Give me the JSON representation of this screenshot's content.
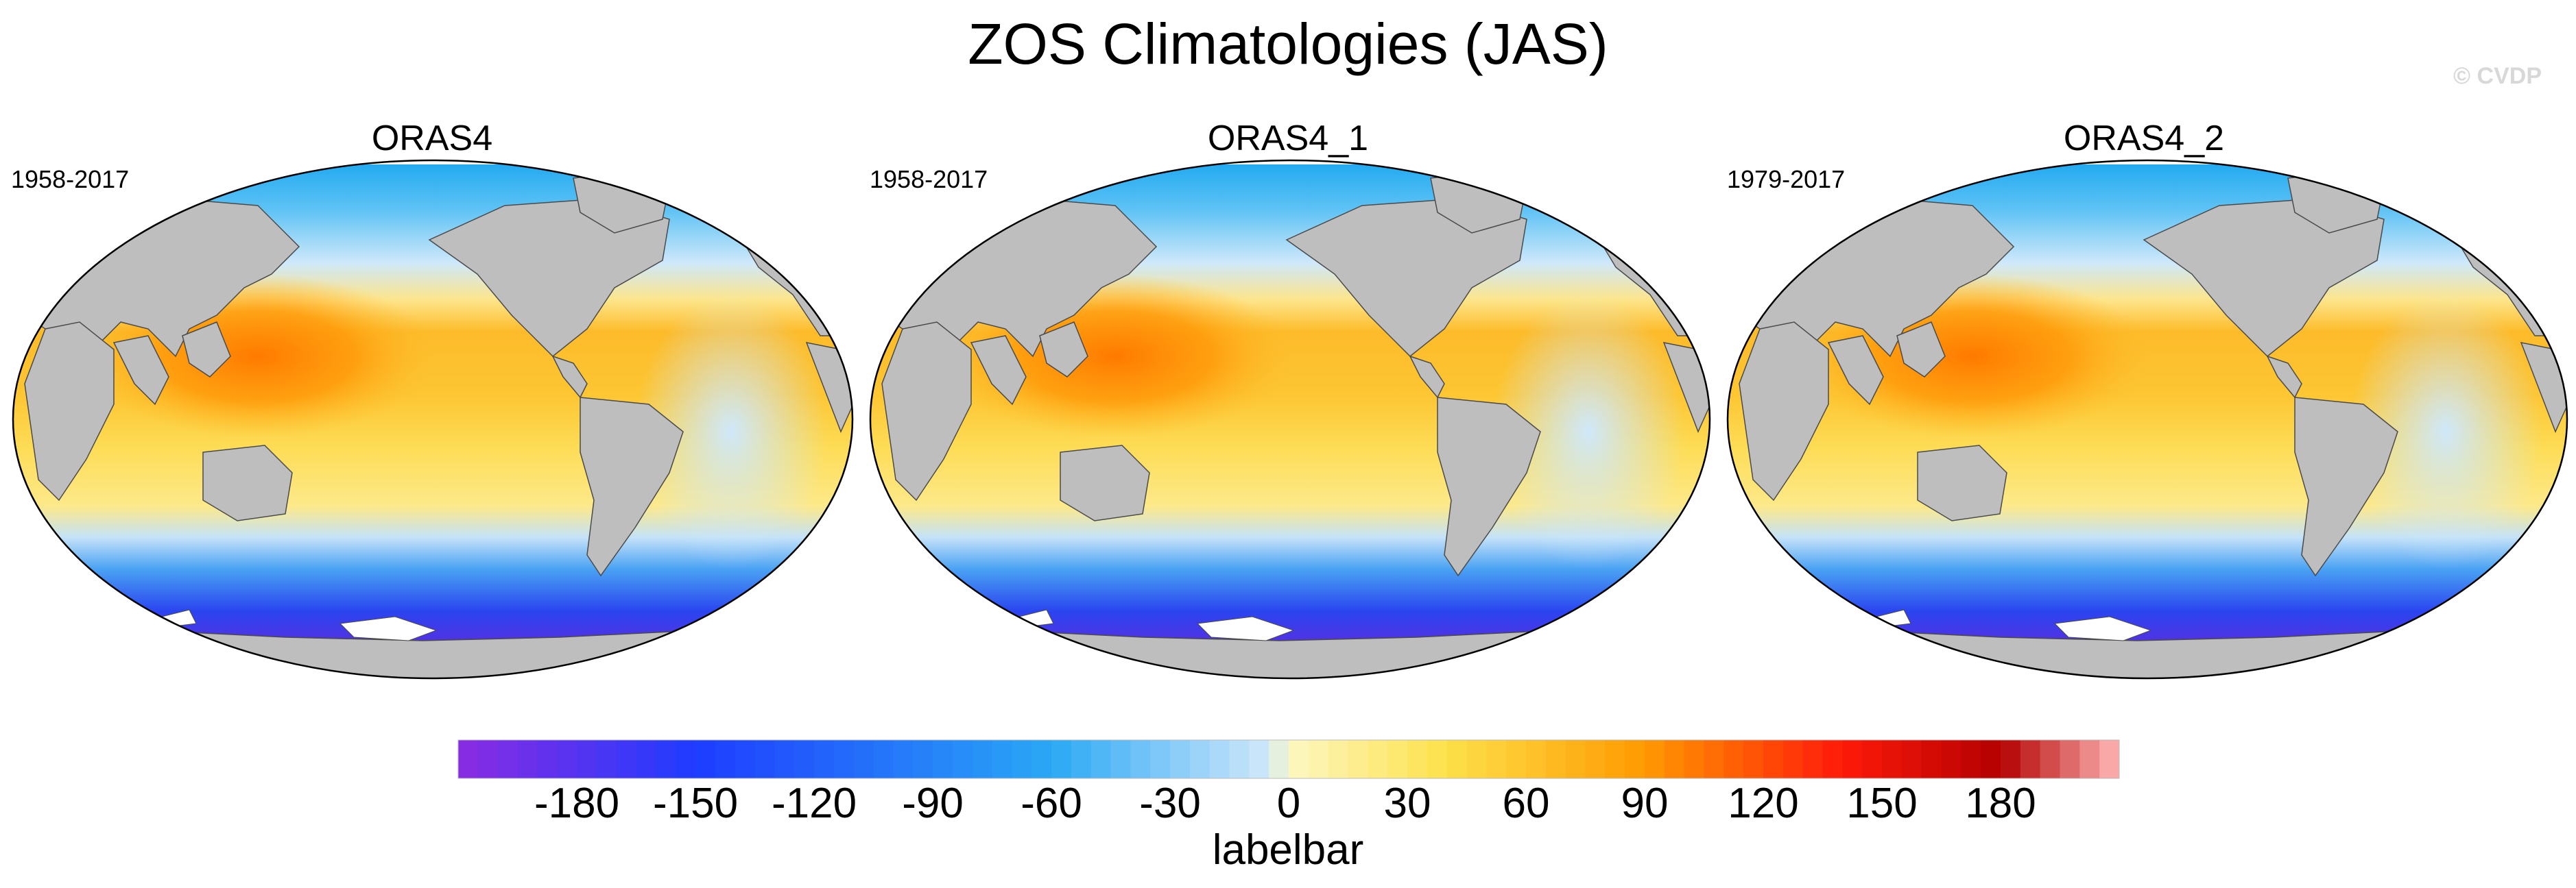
{
  "title": "ZOS Climatologies (JAS)",
  "watermark": "© CVDP",
  "panels": [
    {
      "name": "ORAS4",
      "period": "1958-2017"
    },
    {
      "name": "ORAS4_1",
      "period": "1958-2017"
    },
    {
      "name": "ORAS4_2",
      "period": "1979-2017"
    }
  ],
  "colorbar": {
    "label": "labelbar",
    "min": -210,
    "max": 210,
    "step": 5,
    "ticks": [
      "-180",
      "-150",
      "-120",
      "-90",
      "-60",
      "-30",
      "0",
      "30",
      "60",
      "90",
      "120",
      "150",
      "180"
    ],
    "colors": {
      "min": "#8a2be2",
      "blue": "#1e3cff",
      "cyan": "#2aa8f5",
      "pale_blue": "#cfe8fa",
      "pale_yellow": "#fdf7c2",
      "yellow": "#fde14a",
      "orange": "#ff9900",
      "red": "#ff1a0a",
      "dark_red": "#b30000",
      "max": "#ffb6b6"
    }
  },
  "map_colors": {
    "land": "#bebebe",
    "frame": "#000000"
  }
}
